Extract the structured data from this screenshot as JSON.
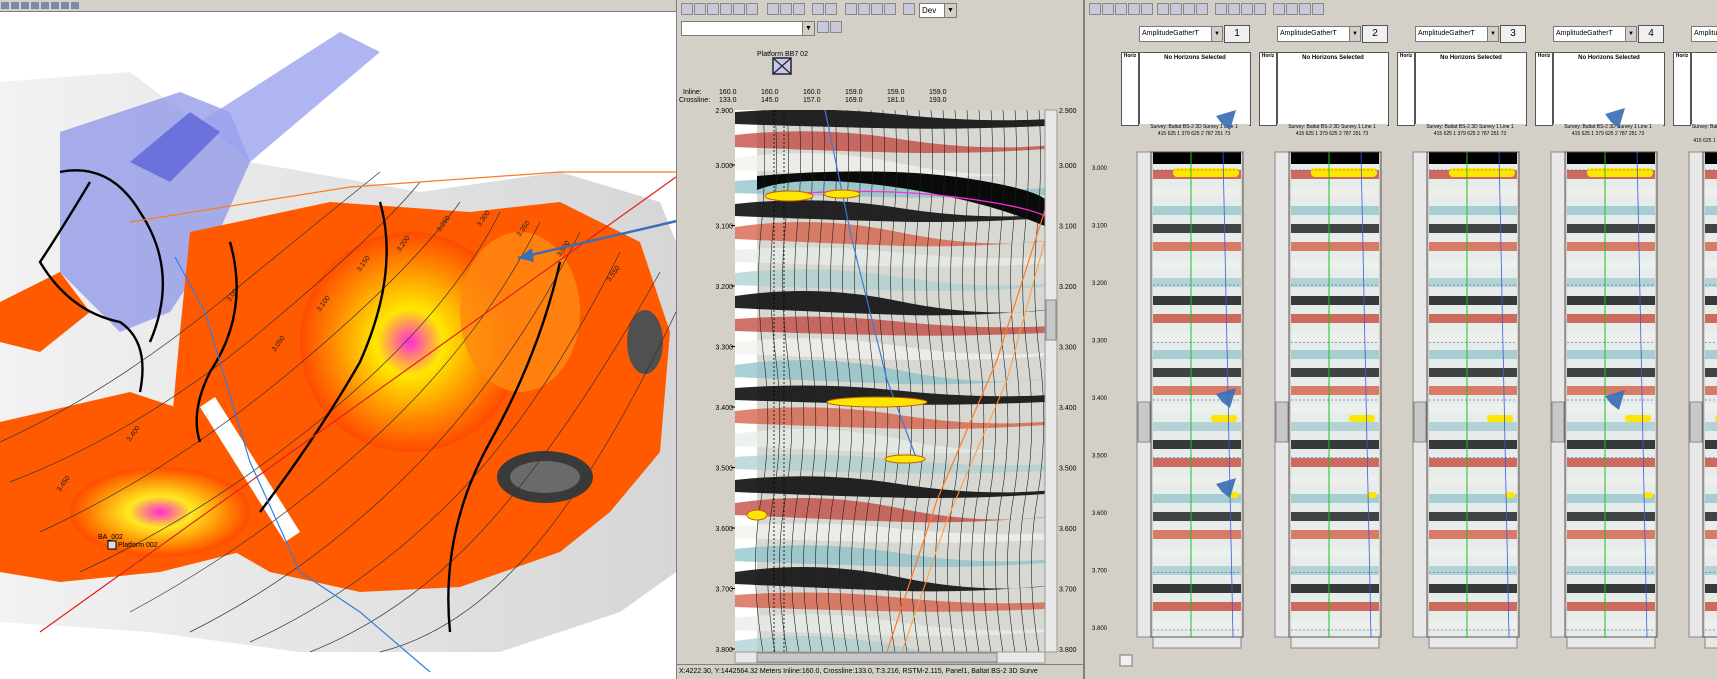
{
  "map": {
    "well_label_1": "BA_002",
    "well_label_2": "Platform 002",
    "contours": [
      "3.00",
      "3.050",
      "3.100",
      "3.150",
      "3.200",
      "3.250",
      "3.300",
      "3.350",
      "3.400",
      "3.450",
      "3.500",
      "3.550"
    ]
  },
  "seismic": {
    "toolbar_combo": "Dev",
    "platform_label": "Platform BB7 02",
    "header_labels": {
      "inline": "Inline:",
      "crossline": "Crossline:"
    },
    "header_columns": [
      {
        "inline": "160.0",
        "crossline": "133.0"
      },
      {
        "inline": "160.0",
        "crossline": "145.0"
      },
      {
        "inline": "160.0",
        "crossline": "157.0"
      },
      {
        "inline": "159.0",
        "crossline": "169.0"
      },
      {
        "inline": "159.0",
        "crossline": "181.0"
      },
      {
        "inline": "159.0",
        "crossline": "193.0"
      }
    ],
    "time_ticks_left": [
      "3.000",
      "3.100",
      "3.200",
      "3.300",
      "3.400",
      "3.500",
      "3.600",
      "3.700",
      "3.800"
    ],
    "time_ticks_right": [
      "3.000",
      "3.100",
      "3.200",
      "3.300",
      "3.400",
      "3.500",
      "3.600",
      "3.700",
      "3.800"
    ],
    "top_time_left": "2.900",
    "top_time_right": "2.900",
    "status": "X:4222.30, Y:1442564.32 Meters   Inline:160.0, Crossline:133.0, T:3.216, RSTM-2.115, Panel1, Baltat BS-2 3D Surve"
  },
  "gathers": {
    "panels": [
      {
        "combo": "AmplitudeGatherT",
        "number": "1",
        "header": "No Horizons Selected",
        "strip": "Horiz"
      },
      {
        "combo": "AmplitudeGatherT",
        "number": "2",
        "header": "No Horizons Selected",
        "strip": "Horiz"
      },
      {
        "combo": "AmplitudeGatherT",
        "number": "3",
        "header": "No Horizons Selected",
        "strip": "Horiz"
      },
      {
        "combo": "AmplitudeGatherT",
        "number": "4",
        "header": "No Horizons Selected",
        "strip": "Horiz"
      },
      {
        "combo": "AmplitudeGatherT",
        "number": "",
        "header": "",
        "strip": "Horiz"
      }
    ],
    "survey_line1": "Survey: Baltat BS-2 3D  Survey 1 Line 1",
    "survey_line2": "415 625 1 379 625 2 787 251 73",
    "time_ticks": [
      "3.000",
      "3.100",
      "3.200",
      "3.300",
      "3.400",
      "3.500",
      "3.600",
      "3.700",
      "3.800"
    ]
  },
  "colors": {
    "amplitude_hot": "#ff4a00",
    "amplitude_peak": "#ff2ad8",
    "horizon": "#ffe600",
    "pointer_arrow": "#3a6fb5"
  }
}
